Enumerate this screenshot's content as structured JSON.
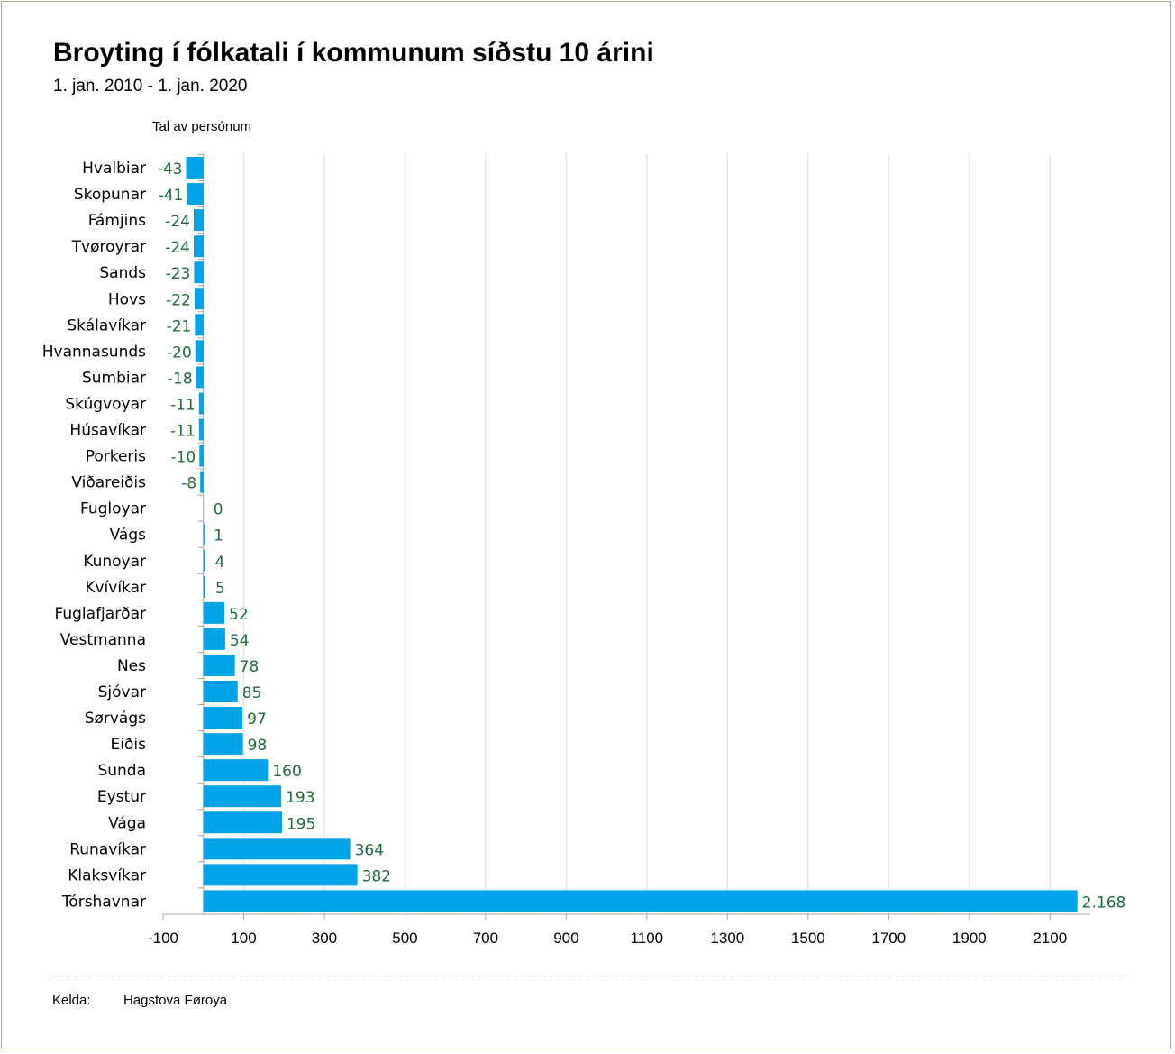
{
  "title": "Broyting í fólkatali í kommunum síðstu 10 árini",
  "subtitle": "1. jan. 2010 - 1. jan. 2020",
  "source": {
    "label": "Kelda:",
    "value": "Hagstova Føroya"
  },
  "colors": {
    "bar": "#00a2e8",
    "value_label": "#1e6b3a",
    "grid": "#e6e6dc",
    "axis": "#a6a6a6"
  },
  "chart_data": {
    "type": "bar",
    "orientation": "horizontal",
    "title": "Broyting í fólkatali í kommunum síðstu 10 árini",
    "subtitle": "1. jan. 2010 - 1. jan. 2020",
    "xlabel": "",
    "ylabel": "Tal av persónum",
    "xlim": [
      -100,
      2200
    ],
    "xticks": [
      -100,
      100,
      300,
      500,
      700,
      900,
      1100,
      1300,
      1500,
      1700,
      1900,
      2100
    ],
    "xtick_labels": [
      "-100",
      "100",
      "300",
      "500",
      "700",
      "900",
      "1100",
      "1300",
      "1500",
      "1700",
      "1900",
      "2100"
    ],
    "categories": [
      "Hvalbiar",
      "Skopunar",
      "Fámjins",
      "Tvøroyrar",
      "Sands",
      "Hovs",
      "Skálavíkar",
      "Hvannasunds",
      "Sumbiar",
      "Skúgvoyar",
      "Húsavíkar",
      "Porkeris",
      "Viðareiðis",
      "Fugloyar",
      "Vágs",
      "Kunoyar",
      "Kvívíkar",
      "Fuglafjarðar",
      "Vestmanna",
      "Nes",
      "Sjóvar",
      "Sørvágs",
      "Eiðis",
      "Sunda",
      "Eystur",
      "Vága",
      "Runavíkar",
      "Klaksvíkar",
      "Tórshavnar"
    ],
    "values": [
      -43,
      -41,
      -24,
      -24,
      -23,
      -22,
      -21,
      -20,
      -18,
      -11,
      -11,
      -10,
      -8,
      0,
      1,
      4,
      5,
      52,
      54,
      78,
      85,
      97,
      98,
      160,
      193,
      195,
      364,
      382,
      2168
    ],
    "value_labels": [
      "-43",
      "-41",
      "-24",
      "-24",
      "-23",
      "-22",
      "-21",
      "-20",
      "-18",
      "-11",
      "-11",
      "-10",
      "-8",
      "0",
      "1",
      "4",
      "5",
      "52",
      "54",
      "78",
      "85",
      "97",
      "98",
      "160",
      "193",
      "195",
      "364",
      "382",
      "2.168"
    ],
    "grid": true
  }
}
